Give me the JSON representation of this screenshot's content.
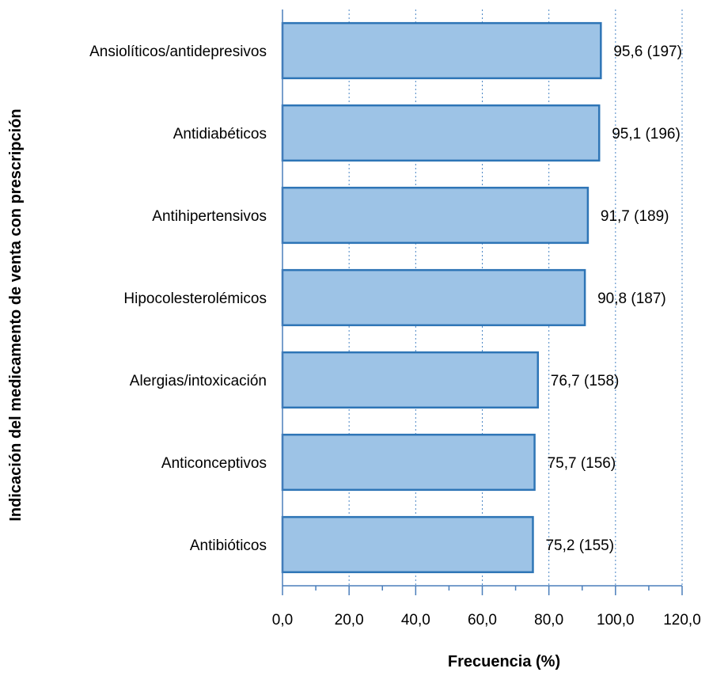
{
  "chart_data": {
    "type": "bar",
    "orientation": "horizontal",
    "categories": [
      "Ansiolíticos/antidepresivos",
      "Antidiabéticos",
      "Antihipertensivos",
      "Hipocolesterolémicos",
      "Alergias/intoxicación",
      "Anticonceptivos",
      "Antibióticos"
    ],
    "values": [
      95.6,
      95.1,
      91.7,
      90.8,
      76.7,
      75.7,
      75.2
    ],
    "data_labels": [
      "95,6 (197)",
      "95,1 (196)",
      "91,7 (189)",
      "90,8 (187)",
      "76,7 (158)",
      "75,7 (156)",
      "75,2 (155)"
    ],
    "xlabel": "Frecuencia (%)",
    "ylabel": "Indicación del medicamento de venta con prescripción",
    "xlim": [
      0,
      120
    ],
    "x_ticks": [
      0,
      20,
      40,
      60,
      80,
      100,
      120
    ],
    "x_tick_labels": [
      "0,0",
      "20,0",
      "40,0",
      "60,0",
      "80,0",
      "100,0",
      "120,0"
    ],
    "grid": "vertical-dashed",
    "legend": "none",
    "colors": {
      "bar_fill": "#9DC3E6",
      "bar_stroke": "#2E75B6",
      "grid": "#4A86C5",
      "axis": "#4A7EBB"
    }
  }
}
